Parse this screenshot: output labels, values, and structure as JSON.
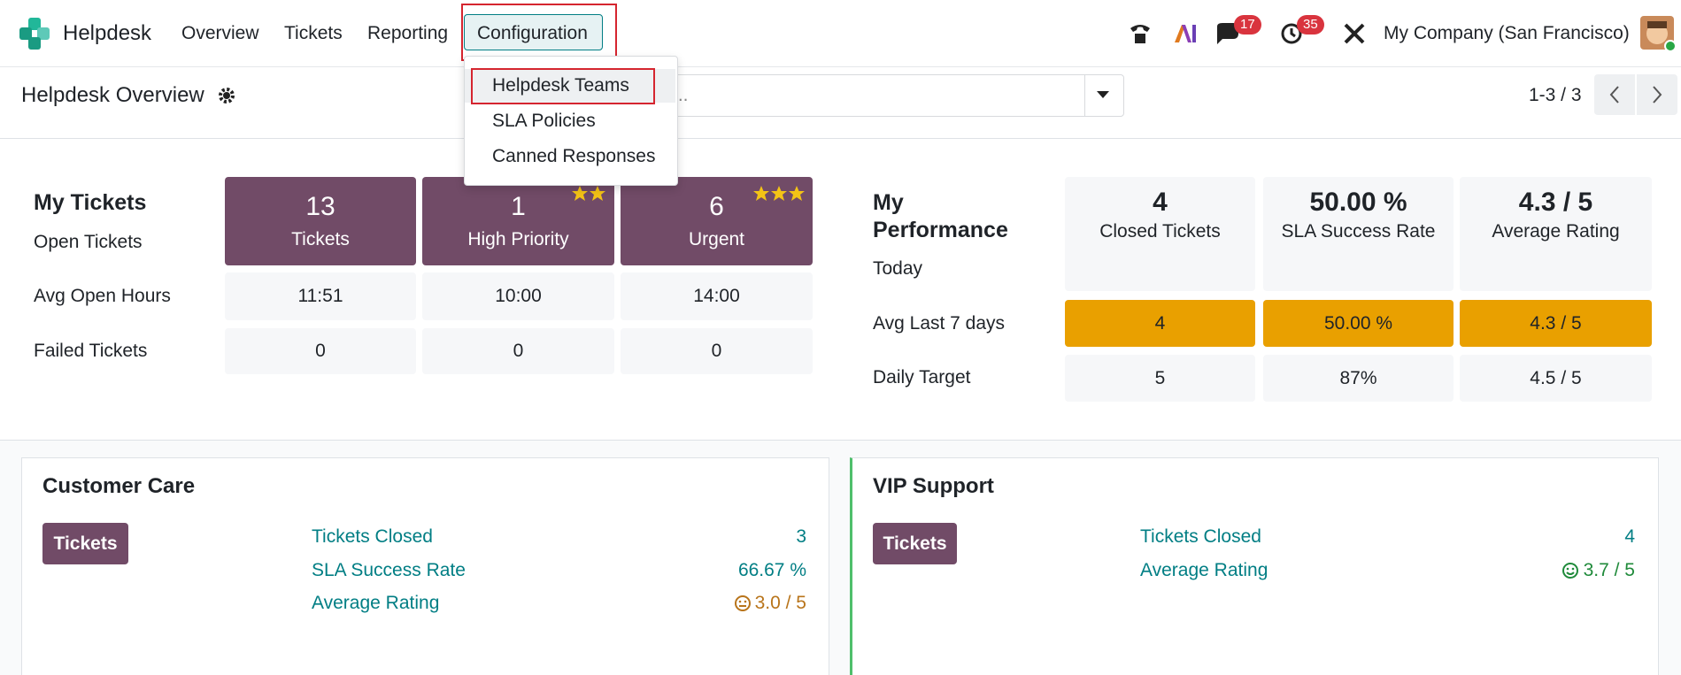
{
  "navbar": {
    "app": "Helpdesk",
    "menu": [
      "Overview",
      "Tickets",
      "Reporting",
      "Configuration"
    ],
    "badges": [
      "17",
      "35"
    ],
    "company": "My Company (San Francisco)"
  },
  "dropdown": [
    "Helpdesk Teams",
    "SLA Policies",
    "Canned Responses"
  ],
  "control_panel": {
    "title": "Helpdesk Overview",
    "search_placeholder": "...",
    "pager": "1-3 / 3"
  },
  "my_tickets": {
    "title": "My Tickets",
    "rows": [
      "Open Tickets",
      "Avg Open Hours",
      "Failed Tickets"
    ],
    "columns": [
      {
        "value": "13",
        "label": "Tickets"
      },
      {
        "value": "1",
        "label": "High Priority"
      },
      {
        "value": "6",
        "label": "Urgent"
      }
    ],
    "avg_open_hours": [
      "11:51",
      "10:00",
      "14:00"
    ],
    "failed_tickets": [
      "0",
      "0",
      "0"
    ]
  },
  "my_performance": {
    "title": "My Performance",
    "rows": [
      "Today",
      "Avg Last 7 days",
      "Daily Target"
    ],
    "columns": [
      {
        "value": "4",
        "label": "Closed Tickets"
      },
      {
        "value": "50.00 %",
        "label": "SLA Success Rate"
      },
      {
        "value": "4.3 / 5",
        "label": "Average Rating"
      }
    ],
    "avg_last_7_days": [
      "4",
      "50.00 %",
      "4.3 / 5"
    ],
    "daily_target": [
      "5",
      "87%",
      "4.5 / 5"
    ]
  },
  "teams": [
    {
      "name": "Customer Care",
      "button": "Tickets",
      "stats": [
        {
          "label": "Tickets Closed",
          "value": "3"
        },
        {
          "label": "SLA Success Rate",
          "value": "66.67 %"
        },
        {
          "label": "Average Rating",
          "value": "3.0 / 5"
        }
      ]
    },
    {
      "name": "VIP Support",
      "button": "Tickets",
      "stats": [
        {
          "label": "Tickets Closed",
          "value": "4"
        },
        {
          "label": "Average Rating",
          "value": "3.7 / 5"
        }
      ]
    }
  ]
}
